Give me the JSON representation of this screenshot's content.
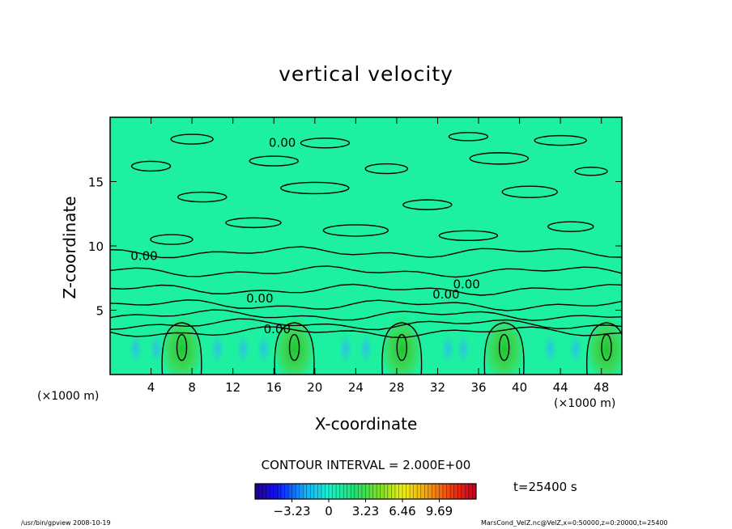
{
  "chart_data": {
    "type": "heatmap",
    "title": "vertical velocity",
    "xlabel": "X-coordinate",
    "ylabel": "Z-coordinate",
    "x_unit_left": "(×1000 m)",
    "x_unit_right": "(×1000 m)",
    "xlim": [
      0,
      50
    ],
    "ylim": [
      0,
      20
    ],
    "x_ticks": [
      4,
      8,
      12,
      16,
      20,
      24,
      28,
      32,
      36,
      40,
      44,
      48
    ],
    "y_ticks": [
      5,
      10,
      15
    ],
    "contour_labels": [
      "0.00",
      "0.00",
      "0.00",
      "0.00",
      "0.00",
      "0.00"
    ],
    "updraft_centers_x": [
      7,
      18,
      28.5,
      38.5,
      48.5
    ],
    "contour_interval": "CONTOUR INTERVAL = 2.000E+00",
    "time": "t=25400 s",
    "colorbar": {
      "min": -6.46,
      "max": 12.92,
      "tick_values": [
        -3.23,
        0,
        3.23,
        6.46,
        9.69
      ],
      "tick_labels": [
        "−3.23",
        "0",
        "3.23",
        "6.46",
        "9.69"
      ]
    },
    "colors": {
      "background_field": "#1df0a0",
      "positive_core": "#2dd84c",
      "negative_core": "#38c4ec"
    }
  },
  "footer": {
    "left": "/usr/bin/gpview   2008-10-19",
    "right": "MarsCond_VelZ.nc@VelZ,x=0:50000,z=0:20000,t=25400"
  }
}
